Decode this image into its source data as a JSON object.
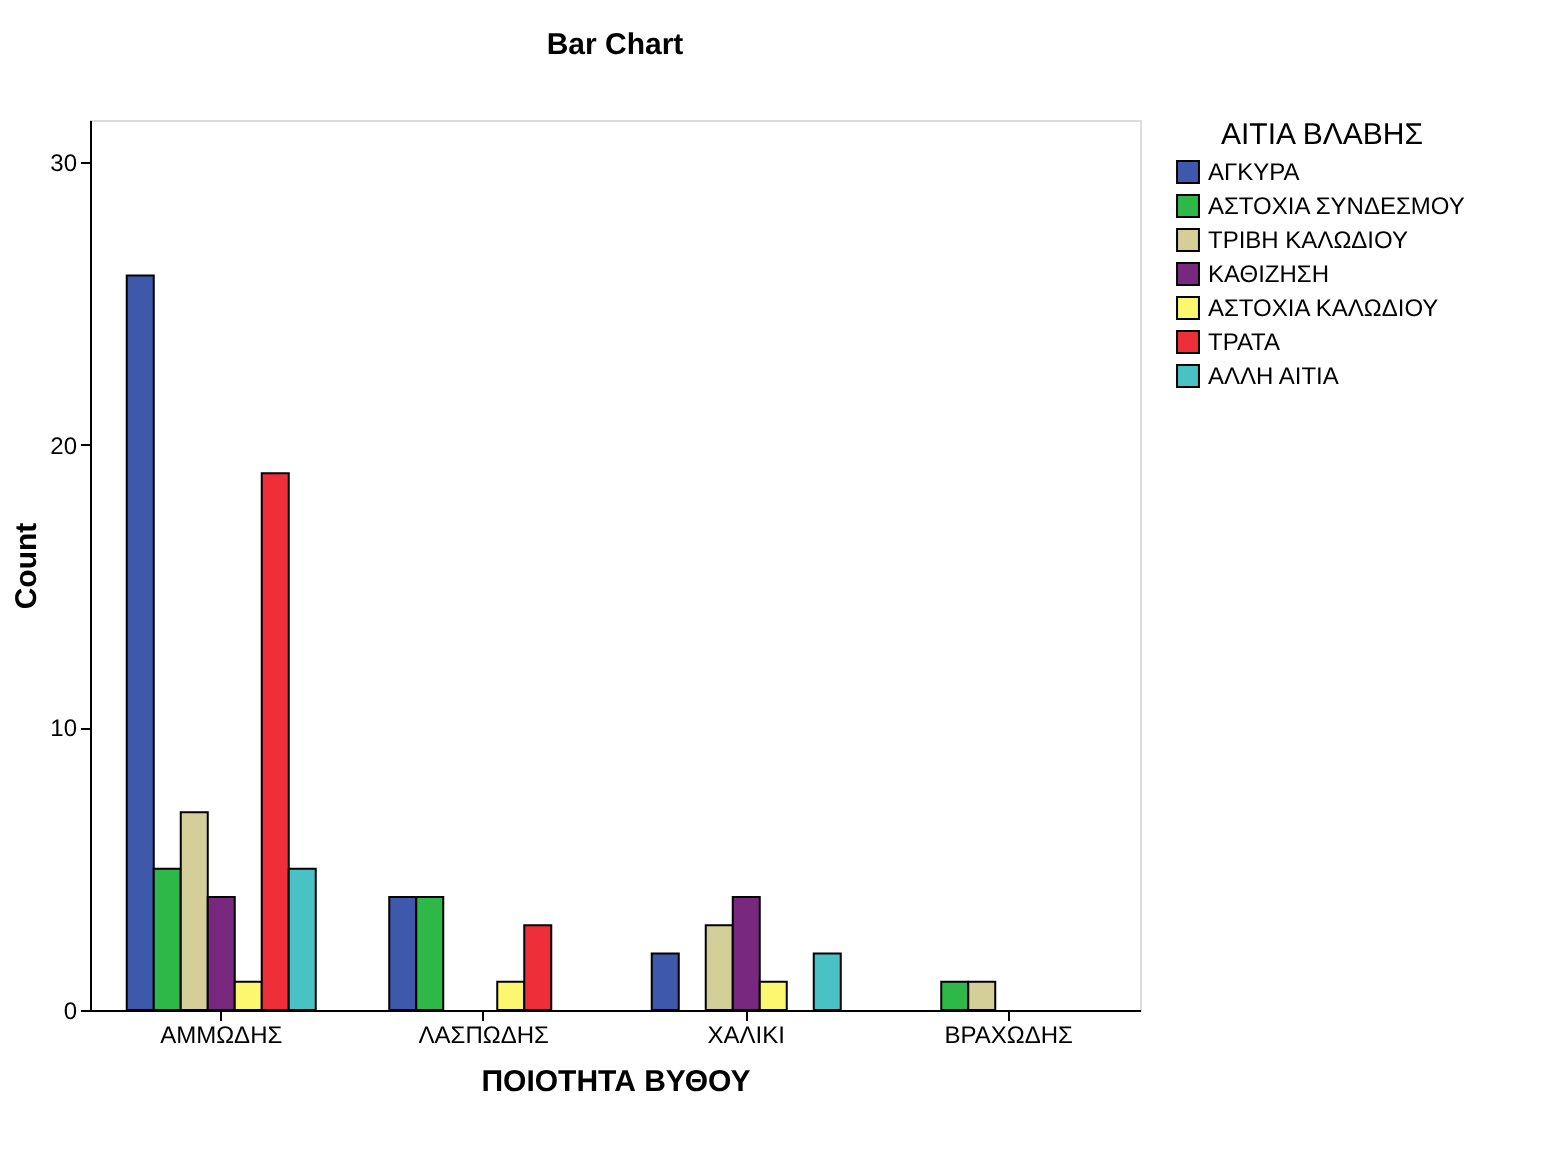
{
  "chart_data": {
    "type": "bar",
    "title": "Bar Chart",
    "xlabel": "ΠΟΙΟΤΗΤΑ ΒΥΘΟΥ",
    "ylabel": "Count",
    "legend_title": "ΑΙΤΙΑ ΒΛΑΒΗΣ",
    "categories": [
      "ΑΜΜΩΔΗΣ",
      "ΛΑΣΠΩΔΗΣ",
      "ΧΑΛΙΚΙ",
      "ΒΡΑΧΩΔΗΣ"
    ],
    "series": [
      {
        "name": "ΑΓΚΥΡΑ",
        "color": "#3e58ac",
        "values": [
          26,
          4,
          2,
          null
        ]
      },
      {
        "name": "ΑΣΤΟΧΙΑ ΣΥΝΔΕΣΜΟΥ",
        "color": "#2eb848",
        "values": [
          5,
          4,
          null,
          1
        ]
      },
      {
        "name": "ΤΡΙΒΗ ΚΑΛΩΔΙΟΥ",
        "color": "#d4cf98",
        "values": [
          7,
          null,
          3,
          1
        ]
      },
      {
        "name": "ΚΑΘΙΖΗΣΗ",
        "color": "#79287f",
        "values": [
          4,
          null,
          4,
          null
        ]
      },
      {
        "name": "ΑΣΤΟΧΙΑ ΚΑΛΩΔΙΟΥ",
        "color": "#fbf870",
        "values": [
          1,
          1,
          1,
          null
        ]
      },
      {
        "name": "ΤΡΑΤΑ",
        "color": "#ee2e38",
        "values": [
          19,
          3,
          null,
          null
        ]
      },
      {
        "name": "ΑΛΛΗ ΑΙΤΙΑ",
        "color": "#48c2c5",
        "values": [
          5,
          null,
          2,
          null
        ]
      }
    ],
    "ylim": [
      0,
      31.5
    ],
    "yticks": [
      0,
      10,
      20,
      30
    ],
    "grid": false,
    "legend": "right"
  }
}
